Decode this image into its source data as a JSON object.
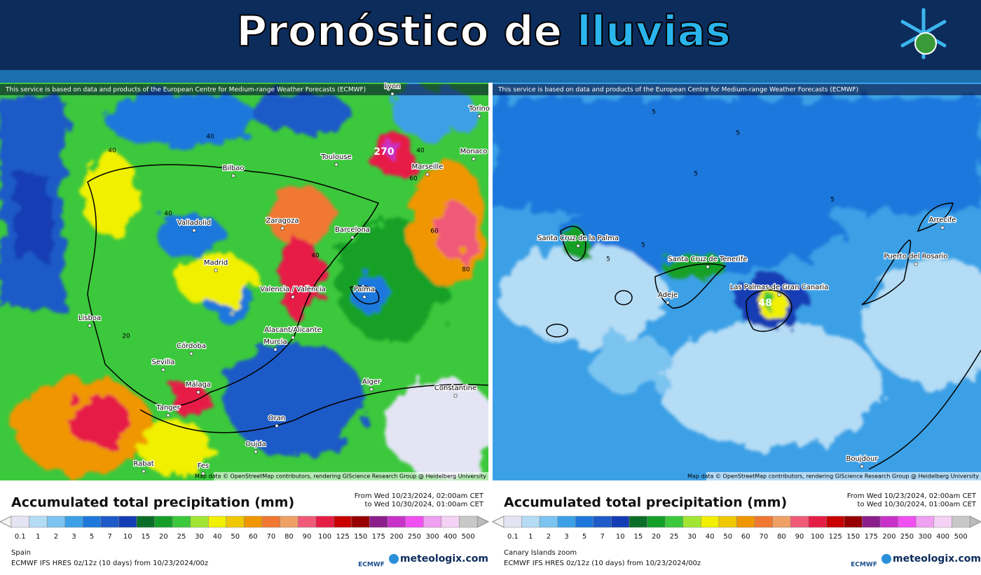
{
  "header": {
    "title_main": "Pronóstico de",
    "title_accent": "lluvias"
  },
  "panels": [
    {
      "attribution": "This service is based on data and products of the European Centre for Medium-range Weather Forecasts (ECMWF)",
      "map_credit": "Map data © OpenStreetMap contributors, rendering GIScience Research Group @ Heidelberg University",
      "places": [
        "Lyon",
        "Torino",
        "Toulouse",
        "Bilbao",
        "Marseille",
        "Monaco",
        "Valladolid",
        "Zaragoza",
        "Barcelona",
        "Madrid",
        "Valencia / València",
        "Palma",
        "Lisboa",
        "Alacant/Alicante",
        "Murcia",
        "Córdoba",
        "Sevilla",
        "Málaga",
        "Alger",
        "Constantine",
        "Tanger",
        "Oran",
        "Oujda",
        "Rabat",
        "Fes"
      ],
      "contour_labels": [
        "270",
        "40",
        "40",
        "40",
        "40",
        "60",
        "60",
        "80",
        "40",
        "20"
      ],
      "legend_title": "Accumulated total precipitation (mm)",
      "from": "From Wed 10/23/2024, 02:00am CET",
      "to": "to Wed 10/30/2024, 01:00am CET",
      "region": "Spain",
      "model": "ECMWF IFS HRES 0z/12z (10 days)  from  10/23/2024/00z",
      "logo_left": "ECMWF",
      "logo_right": "meteologix.com"
    },
    {
      "attribution": "This service is based on data and products of the European Centre for Medium-range Weather Forecasts (ECMWF)",
      "map_credit": "Map data © OpenStreetMap contributors, rendering GIScience Research Group @ Heidelberg University",
      "places": [
        "Santa Cruz de la Palma",
        "Santa Cruz de Tenerife",
        "Adeje",
        "Las Palmas de Gran Canaria",
        "Arrecife",
        "Puerto del Rosario",
        "Boujdour"
      ],
      "contour_labels": [
        "48",
        "5",
        "5",
        "5",
        "5",
        "5",
        "5"
      ],
      "legend_title": "Accumulated total precipitation (mm)",
      "from": "From Wed 10/23/2024, 02:00am CET",
      "to": "to Wed 10/30/2024, 01:00am CET",
      "region": "Canary Islands zoom",
      "model": "ECMWF IFS HRES 0z/12z (10 days)  from  10/23/2024/00z",
      "logo_left": "ECMWF",
      "logo_right": "meteologix.com"
    }
  ],
  "scale": {
    "values": [
      0.1,
      1,
      2,
      3,
      5,
      7,
      10,
      15,
      20,
      25,
      30,
      40,
      50,
      60,
      70,
      80,
      90,
      100,
      125,
      150,
      175,
      200,
      250,
      300,
      400,
      500
    ],
    "colors": [
      "#e4e4f4",
      "#b4dcf5",
      "#7cc4f0",
      "#3ca0e6",
      "#1e78dc",
      "#1e5ac8",
      "#143cb4",
      "#0a6e28",
      "#14a028",
      "#3cc83c",
      "#a0e632",
      "#f0f000",
      "#f0c800",
      "#f09600",
      "#f07832",
      "#f0a064",
      "#f05a78",
      "#e61e46",
      "#c80000",
      "#960000",
      "#8c1e8c",
      "#c832c8",
      "#f050f0",
      "#f0a0f0",
      "#f5d2f5",
      "#c8c8c8"
    ]
  }
}
